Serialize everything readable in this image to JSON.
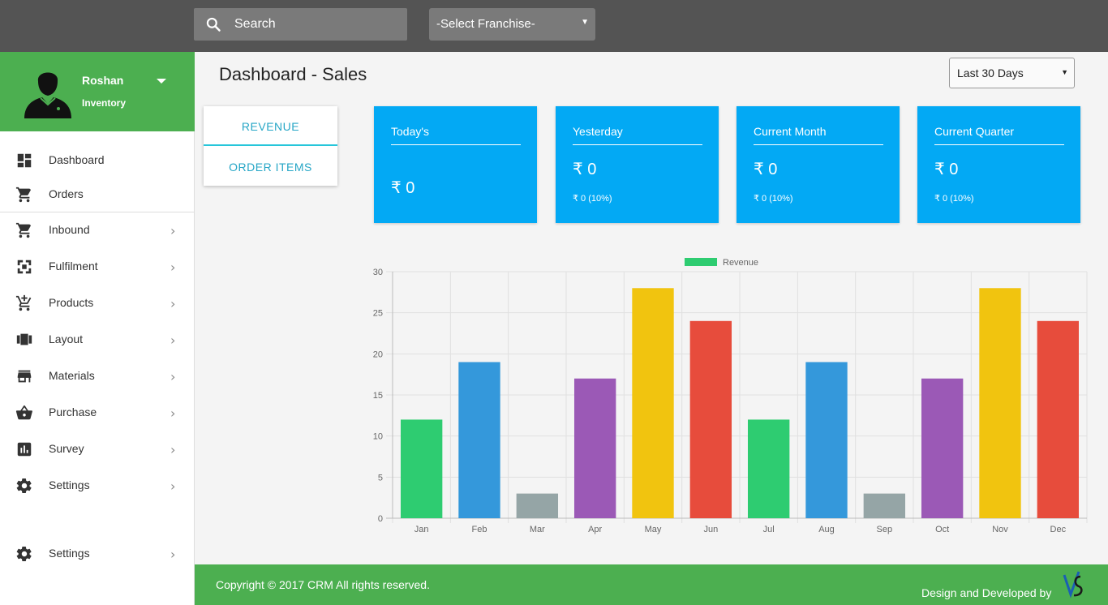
{
  "topbar": {
    "search_placeholder": "Search",
    "franchise_select": "-Select Franchise-"
  },
  "profile": {
    "name": "Roshan",
    "role": "Inventory"
  },
  "nav": [
    {
      "label": "Dashboard",
      "icon": "dashboard-icon"
    },
    {
      "label": "Orders",
      "icon": "cart-icon"
    },
    {
      "label": "Inbound",
      "icon": "cart-icon"
    },
    {
      "label": "Fulfilment",
      "icon": "fulfilment-icon"
    },
    {
      "label": "Products",
      "icon": "add-cart-icon"
    },
    {
      "label": "Layout",
      "icon": "layout-icon"
    },
    {
      "label": "Materials",
      "icon": "store-icon"
    },
    {
      "label": "Purchase",
      "icon": "basket-icon"
    },
    {
      "label": "Survey",
      "icon": "bar-chart-icon"
    },
    {
      "label": "Settings",
      "icon": "gear-icon"
    },
    {
      "label": "Settings",
      "icon": "gear-icon"
    }
  ],
  "header": {
    "title": "Dashboard - Sales",
    "range": "Last 30 Days"
  },
  "tabs": [
    "REVENUE",
    "ORDER ITEMS"
  ],
  "cards": [
    {
      "title": "Today's",
      "value": "₹ 0",
      "sub": ""
    },
    {
      "title": "Yesterday",
      "value": "₹ 0",
      "sub": "₹ 0 (10%)"
    },
    {
      "title": "Current Month",
      "value": "₹ 0",
      "sub": "₹ 0 (10%)"
    },
    {
      "title": "Current Quarter",
      "value": "₹ 0",
      "sub": "₹ 0 (10%)"
    }
  ],
  "chart_data": {
    "type": "bar",
    "categories": [
      "Jan",
      "Feb",
      "Mar",
      "Apr",
      "May",
      "Jun",
      "Jul",
      "Aug",
      "Sep",
      "Oct",
      "Nov",
      "Dec"
    ],
    "series": [
      {
        "name": "Revenue",
        "values": [
          12,
          19,
          3,
          17,
          28,
          24,
          12,
          19,
          3,
          17,
          28,
          24
        ]
      }
    ],
    "colors": [
      "#2ecc71",
      "#3498db",
      "#95a5a6",
      "#9b59b6",
      "#f1c40f",
      "#e74c3c",
      "#2ecc71",
      "#3498db",
      "#95a5a6",
      "#9b59b6",
      "#f1c40f",
      "#e74c3c"
    ],
    "legend_color": "#2ecc71",
    "ylim": [
      0,
      30
    ],
    "yticks": [
      0,
      5,
      10,
      15,
      20,
      25,
      30
    ],
    "grid": true,
    "legend_position": "top"
  },
  "footer": {
    "copyright": "Copyright © 2017 CRM All rights reserved.",
    "developed_by": "Design and Developed by"
  }
}
